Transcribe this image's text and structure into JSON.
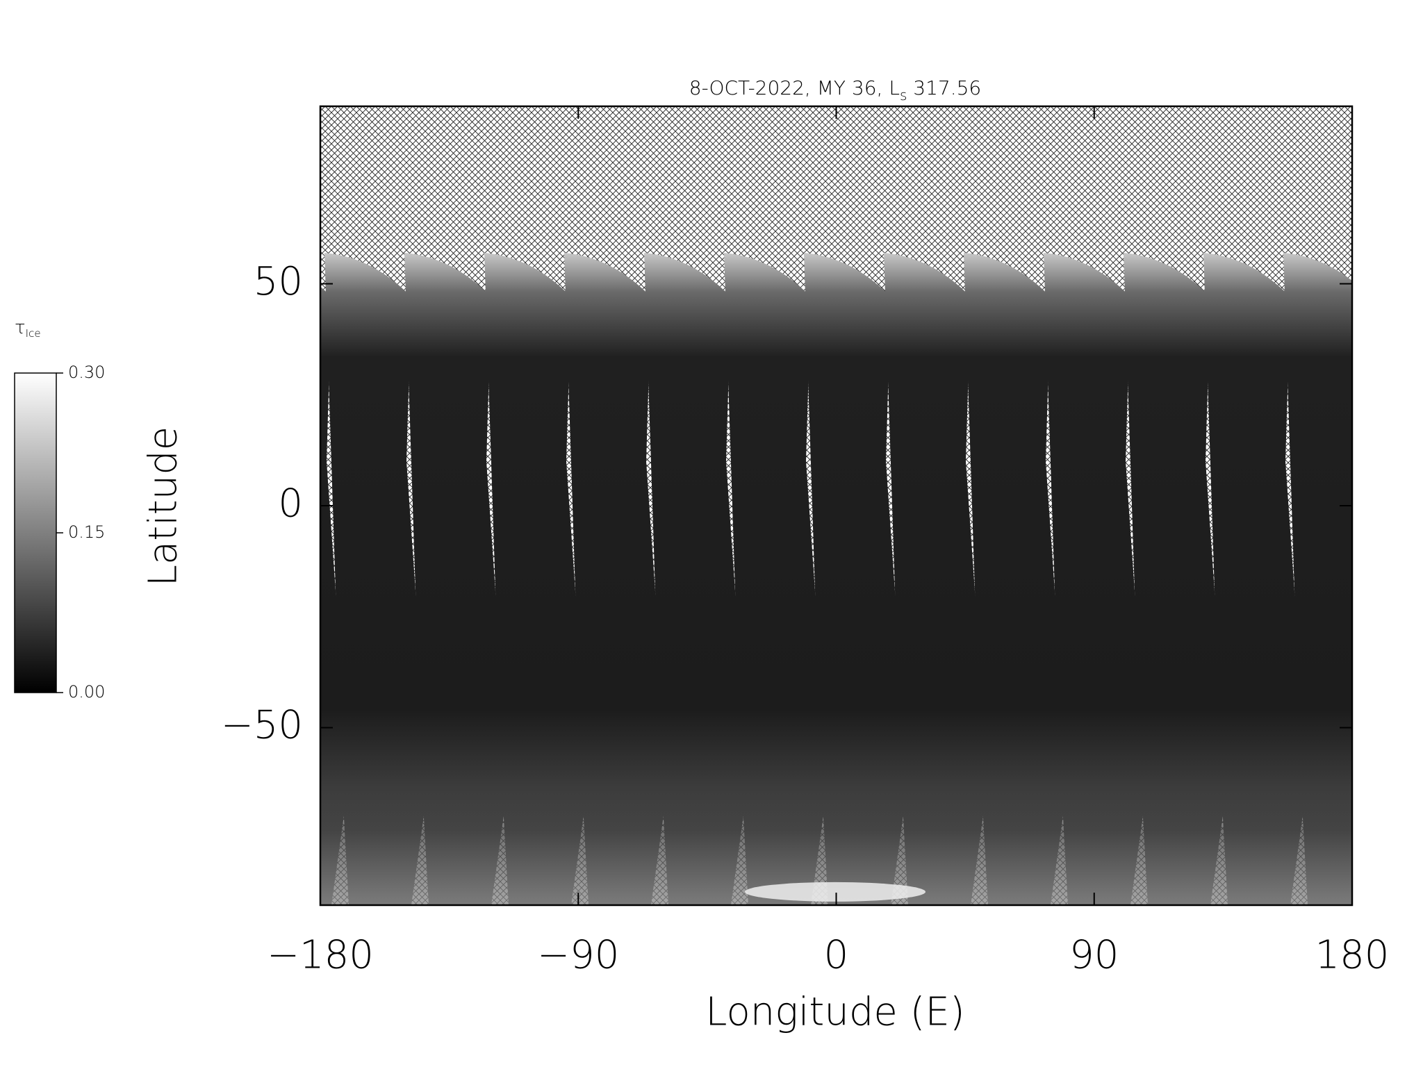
{
  "chart_data": {
    "type": "map",
    "title": "8-OCT-2022, MY 36,  L",
    "title_subscript": "s",
    "title_suffix": " 317.56",
    "x_label": "Longitude (E)",
    "y_label": "Latitude",
    "xlim": [
      -180,
      180
    ],
    "xticks": [
      {
        "value": -180,
        "label": "−180"
      },
      {
        "value": -90,
        "label": "−90"
      },
      0,
      90,
      180
    ],
    "ylim": [
      -90,
      90
    ],
    "yticks": [
      {
        "value": -50,
        "label": "−50"
      },
      0,
      50
    ],
    "colorbar": {
      "label": "τ",
      "label_subscript": "Ice",
      "lim": [
        0,
        0.3
      ],
      "ticks": [
        {
          "value": 0,
          "label": "0.00"
        },
        {
          "value": 0.15,
          "label": "0.15"
        },
        {
          "value": 0.3,
          "label": "0.30"
        }
      ]
    }
  }
}
